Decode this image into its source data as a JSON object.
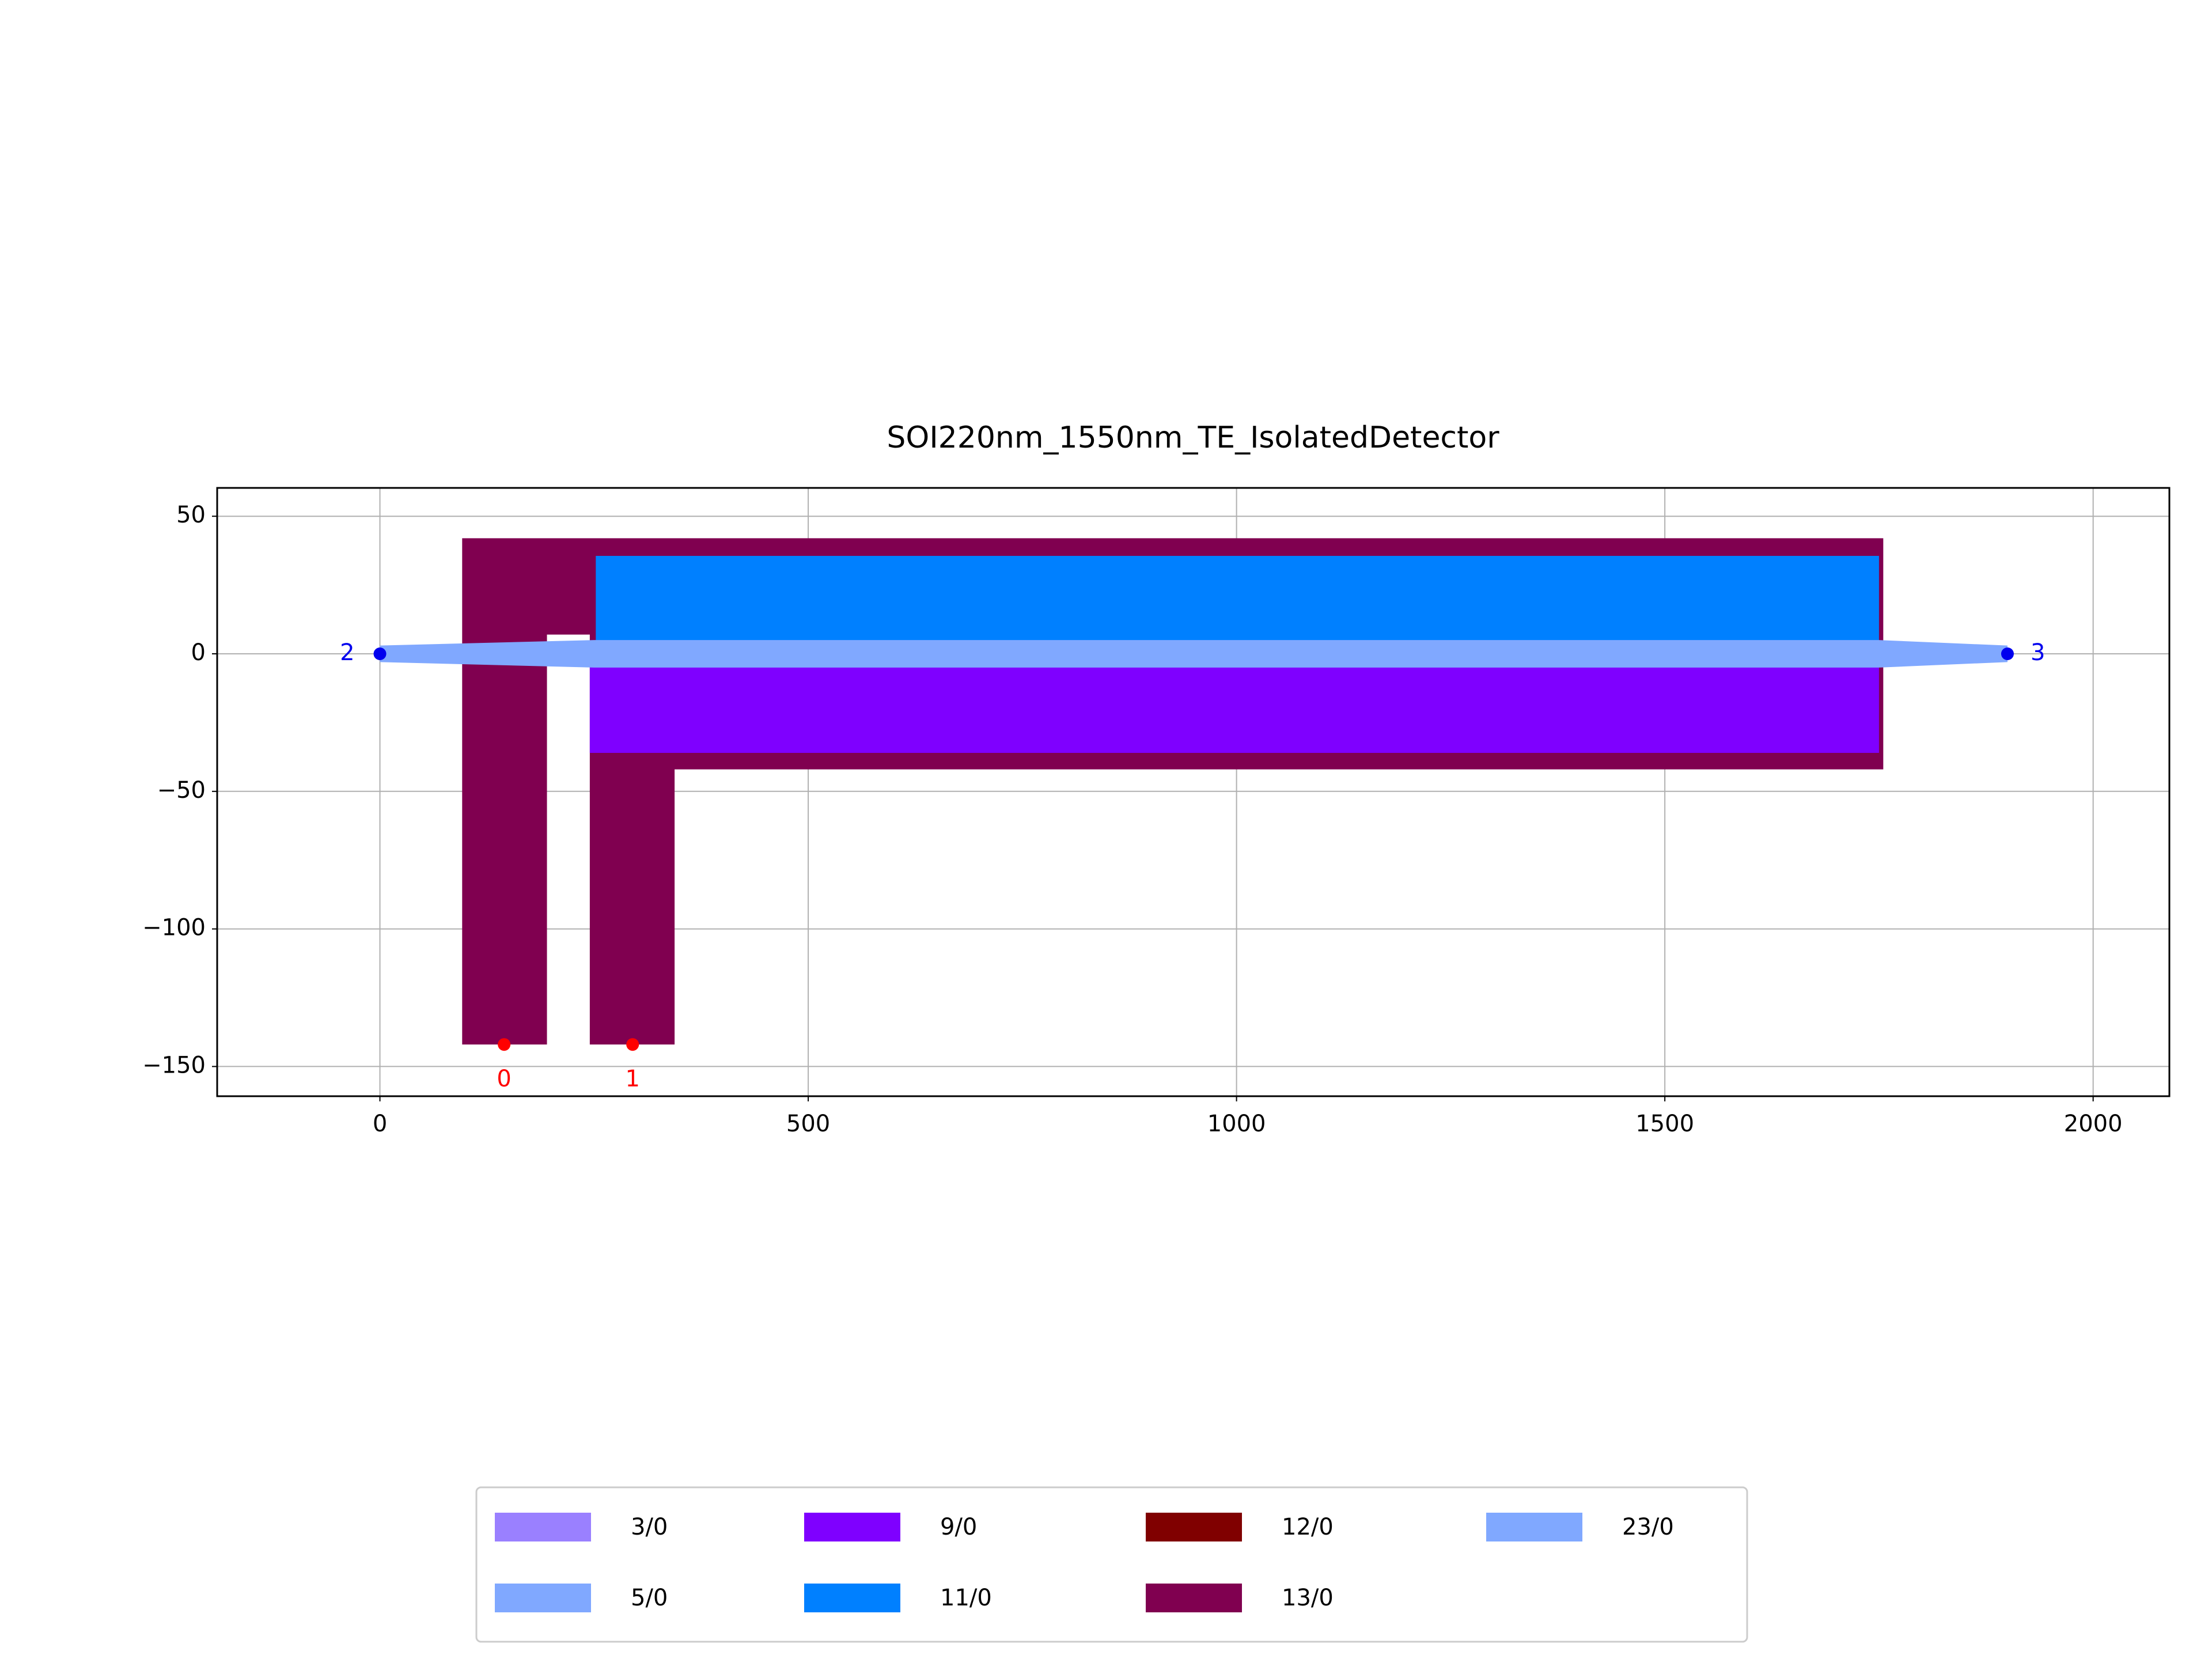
{
  "chart_data": {
    "type": "layout",
    "title": "SOI220nm_1550nm_TE_IsolatedDetector",
    "xlim": [
      -190,
      2089
    ],
    "ylim": [
      -160.8,
      60.3
    ],
    "xticks": [
      0,
      500,
      1000,
      1500,
      2000
    ],
    "yticks": [
      {
        "value": -150,
        "label": "−150"
      },
      {
        "value": -100,
        "label": "−100"
      },
      {
        "value": -50,
        "label": "−50"
      },
      0,
      50
    ],
    "grid": true,
    "legend_columns": 4,
    "layers": [
      {
        "name": "3/0",
        "color": "#9a80ff",
        "polygons": []
      },
      {
        "name": "5/0",
        "color": "#80a8ff",
        "polygons": []
      },
      {
        "name": "9/0",
        "color": "#7f00ff",
        "polygons": [
          {
            "x": [
              245,
              1750,
              1750,
              245
            ],
            "y": [
              0,
              0,
              -36,
              -36
            ]
          }
        ]
      },
      {
        "name": "11/0",
        "color": "#0080ff",
        "polygons": [
          {
            "x": [
              252,
              1750,
              1750,
              252
            ],
            "y": [
              35.6,
              35.6,
              0,
              0
            ]
          }
        ]
      },
      {
        "name": "12/0",
        "color": "#800000",
        "polygons": []
      },
      {
        "name": "13/0",
        "color": "#800050",
        "polygons": [
          {
            "x": [
              96,
              1755,
              1755,
              344,
              344,
              245,
              245,
              195,
              195,
              96
            ],
            "y": [
              42,
              42,
              -42,
              -42,
              -142,
              -142,
              7,
              7,
              -142,
              -142
            ]
          }
        ]
      },
      {
        "name": "23/0",
        "color": "#80a8ff",
        "polygons": [
          {
            "x": [
              0,
              250,
              1750,
              1900,
              1900,
              1750,
              250,
              0
            ],
            "y": [
              3,
              5,
              5,
              3,
              -3,
              -5,
              -5,
              -3
            ]
          }
        ]
      }
    ],
    "draw_order": [
      5,
      2,
      3,
      6
    ],
    "ports": [
      {
        "label": "0",
        "x": 145,
        "y": -142,
        "color": "#ff0000",
        "label_side": "bottom"
      },
      {
        "label": "1",
        "x": 295,
        "y": -142,
        "color": "#ff0000",
        "label_side": "bottom"
      },
      {
        "label": "2",
        "x": 0,
        "y": 0,
        "color": "#0000ee",
        "label_side": "left"
      },
      {
        "label": "3",
        "x": 1900,
        "y": 0,
        "color": "#0000ee",
        "label_side": "right"
      }
    ]
  }
}
